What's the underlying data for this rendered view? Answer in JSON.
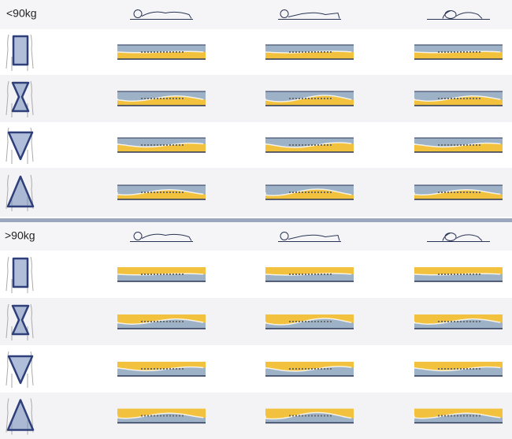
{
  "sections": [
    {
      "label": "<90kg"
    },
    {
      "label": ">90kg"
    }
  ]
}
